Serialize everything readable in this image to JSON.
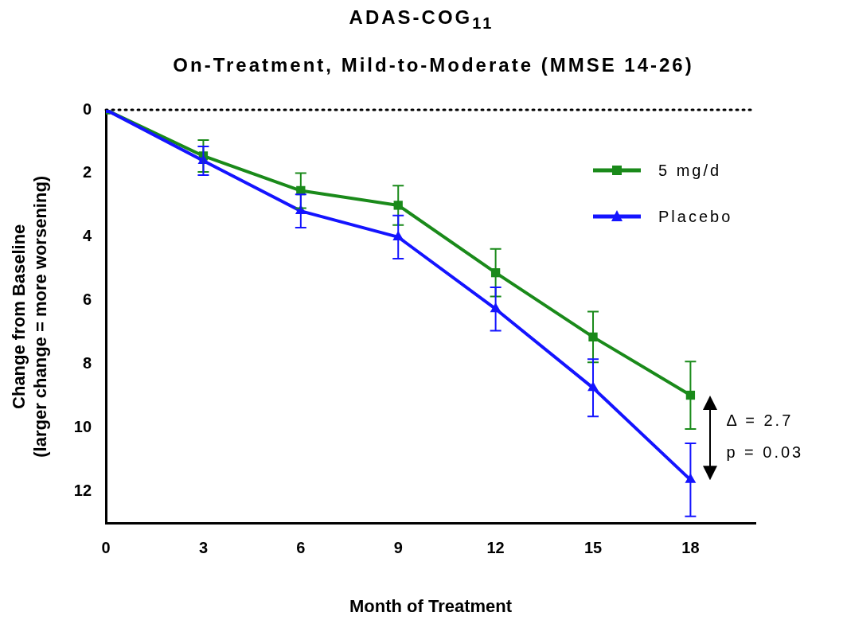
{
  "chart_data": {
    "type": "line",
    "title": "ADAS-COG$_{11}$",
    "subtitle": "On-Treatment, Mild-to-Moderate (MMSE 14-26)",
    "xlabel": "Month of Treatment",
    "ylabel": "Change from Baseline\n(larger change = more worsening)",
    "x": [
      0,
      3,
      6,
      9,
      12,
      15,
      18
    ],
    "series": [
      {
        "name": "5 mg/d",
        "color": "#1a8a1a",
        "marker": "square",
        "values": [
          0,
          1.45,
          2.54,
          3.0,
          5.12,
          7.14,
          8.97
        ],
        "errors": [
          null,
          0.5,
          0.55,
          0.62,
          0.75,
          0.8,
          1.06
        ]
      },
      {
        "name": "Placebo",
        "color": "#1414ff",
        "marker": "triangle",
        "values": [
          0,
          1.6,
          3.18,
          4.0,
          6.26,
          8.74,
          11.63
        ],
        "errors": [
          null,
          0.45,
          0.52,
          0.68,
          0.68,
          0.9,
          1.15
        ]
      }
    ],
    "xlim": [
      0,
      20
    ],
    "xticks": [
      0,
      3,
      6,
      9,
      12,
      15,
      18
    ],
    "ylim": [
      13,
      0
    ],
    "yticks": [
      0,
      2,
      4,
      6,
      8,
      10,
      12
    ],
    "grid": false,
    "legend": "top right",
    "ref_lines": [
      {
        "axis": "y",
        "value": 0,
        "color": "#000000",
        "line_style": "dotted"
      }
    ],
    "annotations": [
      "Δ = 2.7",
      "p = 0.03"
    ]
  }
}
